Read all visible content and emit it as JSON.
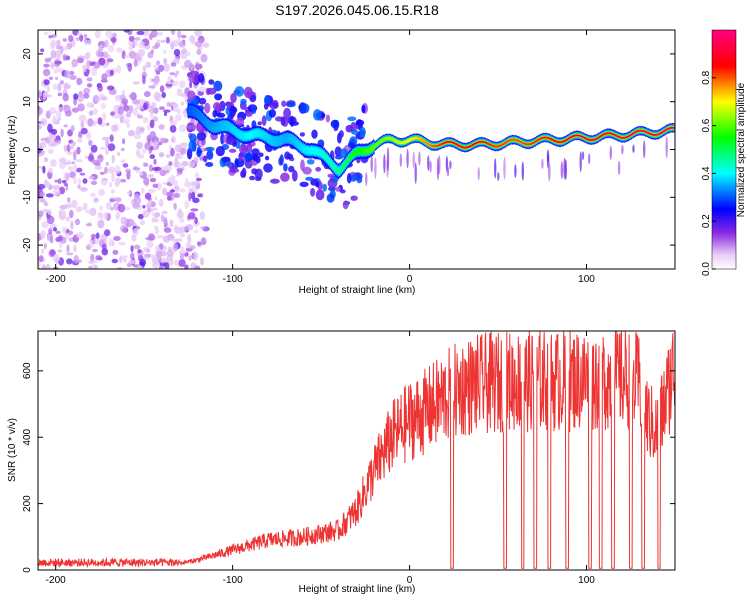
{
  "title": "S197.2026.045.06.15.R18",
  "chart_data": [
    {
      "type": "heatmap",
      "name": "spectrogram",
      "xlabel": "Height of straight line (km)",
      "ylabel": "Frequency (Hz)",
      "xlim": [
        -210,
        150
      ],
      "ylim": [
        -25,
        25
      ],
      "xticks": [
        -200,
        -100,
        0,
        100
      ],
      "yticks": [
        -20,
        -10,
        0,
        10,
        20
      ],
      "xtick_labels": [
        "-200",
        "-100",
        "0",
        "100"
      ],
      "ytick_labels": [
        "-20",
        "-10",
        "0",
        "10",
        "20"
      ],
      "colorbar": {
        "label": "Normalized spectral amplitude",
        "range": [
          0,
          1
        ],
        "ticks": [
          0.0,
          0.2,
          0.4,
          0.6,
          0.8
        ],
        "tick_labels": [
          "0.0",
          "0.2",
          "0.4",
          "0.6",
          "0.8"
        ]
      },
      "ridge": {
        "description_points_x": [
          -125,
          -110,
          -90,
          -70,
          -55,
          -40,
          -30,
          -20,
          -10,
          0,
          20,
          40,
          60,
          80,
          100,
          120,
          150
        ],
        "frequency_hz": [
          8,
          5,
          3,
          2,
          0,
          -4,
          -1,
          1,
          2,
          2,
          1,
          1,
          1.5,
          2,
          2.5,
          3,
          4
        ],
        "peak_amplitude": [
          0.3,
          0.35,
          0.4,
          0.35,
          0.4,
          0.45,
          0.55,
          0.6,
          0.65,
          0.7,
          0.85,
          0.85,
          0.8,
          0.85,
          0.9,
          0.9,
          0.95
        ]
      }
    },
    {
      "type": "line",
      "name": "snr",
      "xlabel": "Height of straight line (km)",
      "ylabel": "SNR (10 * v/v)",
      "xlim": [
        -210,
        150
      ],
      "ylim": [
        0,
        720
      ],
      "xticks": [
        -200,
        -100,
        0,
        100
      ],
      "yticks": [
        0,
        200,
        400,
        600
      ],
      "xtick_labels": [
        "-200",
        "-100",
        "0",
        "100"
      ],
      "ytick_labels": [
        "0",
        "200",
        "400",
        "600"
      ],
      "color": "#ee3333",
      "trend": {
        "x": [
          -210,
          -130,
          -120,
          -100,
          -80,
          -60,
          -40,
          -30,
          -20,
          -10,
          0,
          10,
          20,
          30,
          40,
          60,
          80,
          100,
          120,
          130,
          135,
          140,
          150
        ],
        "y": [
          20,
          20,
          30,
          60,
          90,
          100,
          120,
          180,
          300,
          400,
          450,
          480,
          520,
          550,
          560,
          570,
          570,
          575,
          580,
          560,
          450,
          420,
          620
        ]
      },
      "dropouts_x": [
        24,
        54,
        64,
        71,
        79,
        89,
        102,
        108,
        115,
        125,
        132,
        141
      ]
    }
  ]
}
